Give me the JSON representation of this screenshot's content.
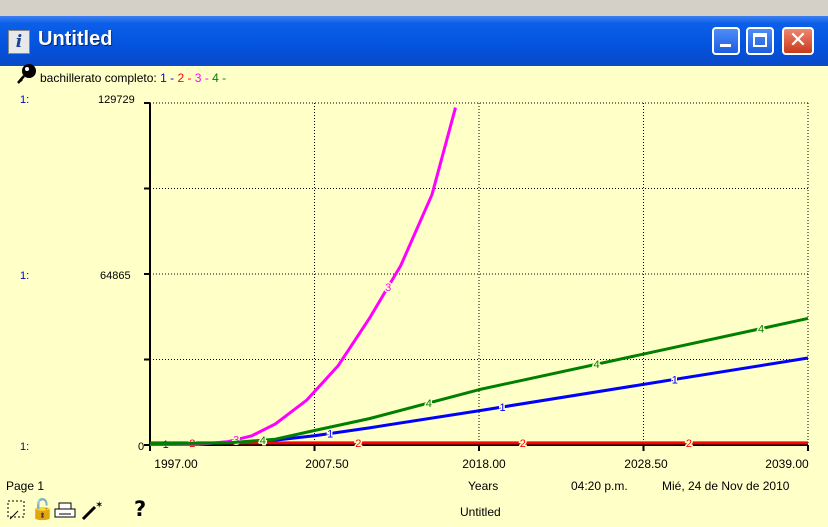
{
  "window": {
    "title": "Untitled"
  },
  "legend": {
    "variable": "bachillerato completo:",
    "items": [
      {
        "id": "1",
        "color": "#0000ff"
      },
      {
        "id": "2",
        "color": "#ff0000"
      },
      {
        "id": "3",
        "color": "#ff00ff"
      },
      {
        "id": "4",
        "color": "#008000"
      }
    ],
    "separator": " - "
  },
  "chart_data": {
    "type": "line",
    "xlabel": "Years",
    "ylabel": "",
    "xlim": [
      1997,
      2039
    ],
    "ylim": [
      0,
      129729
    ],
    "y_tick_labels": [
      "129729",
      "64865",
      "0"
    ],
    "y_axis_ids": [
      "1:",
      "1:",
      "1:"
    ],
    "x_tick_labels": [
      "1997.00",
      "2007.50",
      "2018.00",
      "2028.50",
      "2039.00"
    ],
    "grid": true,
    "series": [
      {
        "name": "1",
        "color": "#0000ff",
        "x": [
          1997,
          2000,
          2004,
          2007.5,
          2011,
          2018,
          2028.5,
          2039
        ],
        "y": [
          300,
          500,
          1200,
          3500,
          6500,
          13000,
          23000,
          33000
        ],
        "label_x": [
          1998,
          2008.5,
          2019.5,
          2030.5
        ]
      },
      {
        "name": "2",
        "color": "#ff0000",
        "x": [
          1997,
          2039
        ],
        "y": [
          800,
          800
        ],
        "label_x": [
          1999.7,
          2010.3,
          2020.8,
          2031.4
        ]
      },
      {
        "name": "3",
        "color": "#ff00ff",
        "x": [
          1997,
          2000,
          2002,
          2003.5,
          2005,
          2007,
          2009,
          2011,
          2013,
          2015,
          2016.5
        ],
        "y": [
          0,
          200,
          1300,
          3500,
          8000,
          17000,
          30000,
          48000,
          68000,
          95000,
          128000
        ],
        "label_x": [
          2002.5,
          2012.2
        ]
      },
      {
        "name": "4",
        "color": "#008000",
        "x": [
          1997,
          2002,
          2005,
          2007.5,
          2011,
          2018,
          2028.5,
          2039
        ],
        "y": [
          500,
          800,
          2200,
          5500,
          10000,
          21000,
          34500,
          48000
        ],
        "label_x": [
          2004.2,
          2014.8,
          2025.5,
          2036
        ]
      }
    ]
  },
  "footer": {
    "page": "Page 1",
    "time": "04:20 p.m.",
    "date": "Mié, 24 de Nov de 2010",
    "doc_name": "Untitled",
    "help": "?"
  }
}
